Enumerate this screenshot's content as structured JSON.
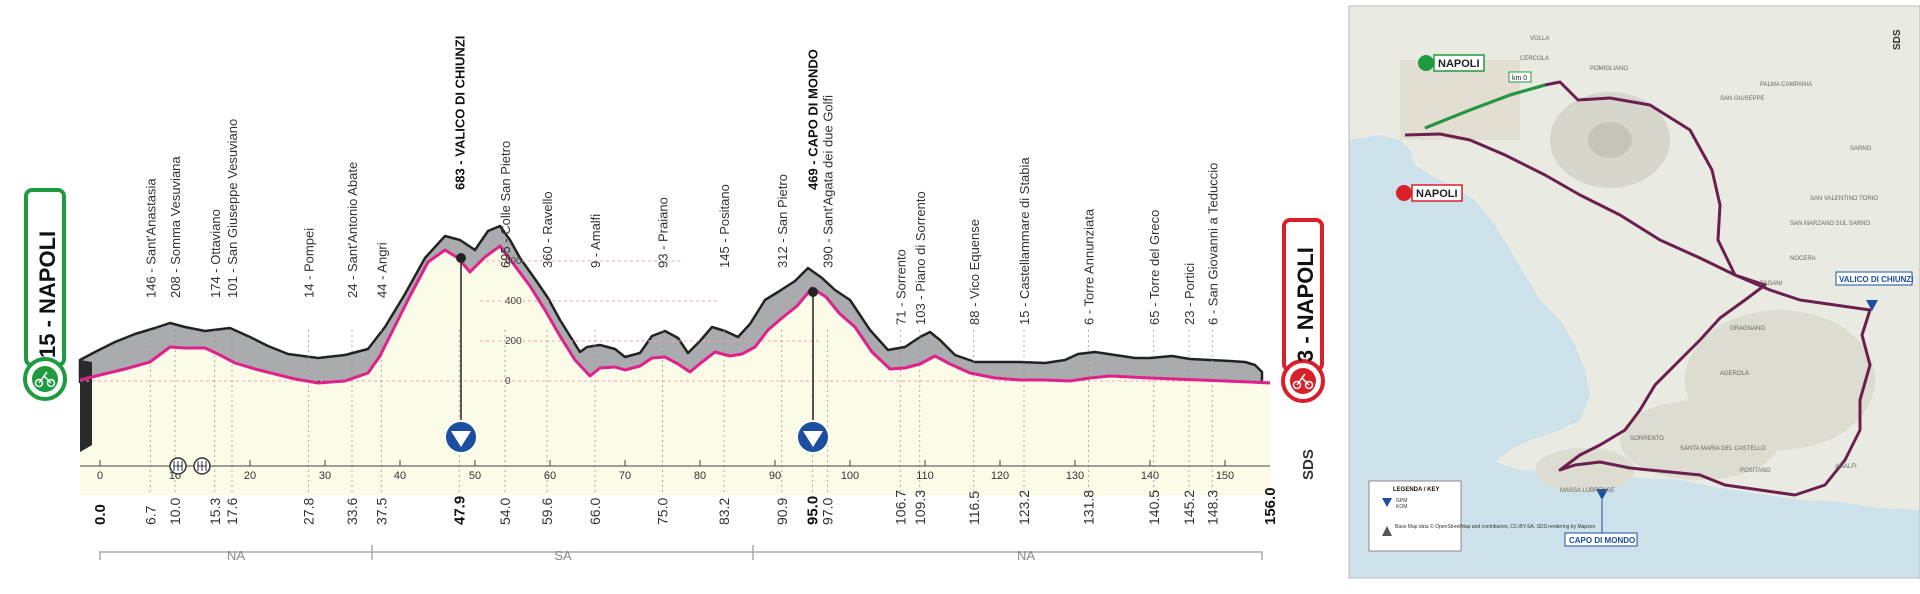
{
  "profile": {
    "start_badge": "15 - NAPOLI",
    "finish_badge": "3 - NAPOLI",
    "brand": "SDS",
    "colors": {
      "start": "#1e9a3f",
      "finish": "#d8202a",
      "line": "#e0218a",
      "fill": "#fbfbe8",
      "terrain": "#a9abaf"
    },
    "elevation_labels": [
      "600",
      "400",
      "200",
      "0"
    ],
    "km_ticks": [
      "0",
      "10",
      "20",
      "30",
      "40",
      "50",
      "60",
      "70",
      "80",
      "90",
      "100",
      "110",
      "120",
      "130",
      "140",
      "150"
    ],
    "waypoints": [
      {
        "km": "0.0",
        "label": "",
        "bold": false
      },
      {
        "km": "6.7",
        "label": "146 - Sant'Anastasia",
        "bold": false
      },
      {
        "km": "10.0",
        "label": "208 - Somma Vesuviana",
        "bold": false
      },
      {
        "km": "15.3",
        "label": "174 - Ottaviano",
        "bold": false
      },
      {
        "km": "17.6",
        "label": "101 - San Giuseppe Vesuviano",
        "bold": false
      },
      {
        "km": "27.8",
        "label": "14 - Pompei",
        "bold": false
      },
      {
        "km": "33.6",
        "label": "24 - Sant'Antonio Abate",
        "bold": false
      },
      {
        "km": "37.5",
        "label": "44 - Angri",
        "bold": false
      },
      {
        "km": "47.9",
        "label": "683 - VALICO DI CHIUNZI",
        "bold": true
      },
      {
        "km": "54.0",
        "label": "695 - Colle San Pietro",
        "bold": false
      },
      {
        "km": "59.6",
        "label": "360 - Ravello",
        "bold": false
      },
      {
        "km": "66.0",
        "label": "9 - Amalfi",
        "bold": false
      },
      {
        "km": "75.0",
        "label": "93 - Praiano",
        "bold": false
      },
      {
        "km": "83.2",
        "label": "145 - Positano",
        "bold": false
      },
      {
        "km": "90.9",
        "label": "312 - San Pietro",
        "bold": false
      },
      {
        "km": "95.0",
        "label": "469 - CAPO DI MONDO",
        "bold": true
      },
      {
        "km": "97.0",
        "label": "390 - Sant'Agata dei due Golfi",
        "bold": false
      },
      {
        "km": "106.7",
        "label": "71 - Sorrento",
        "bold": false
      },
      {
        "km": "109.3",
        "label": "103 - Piano di Sorrento",
        "bold": false
      },
      {
        "km": "116.5",
        "label": "88 - Vico Equense",
        "bold": false
      },
      {
        "km": "123.2",
        "label": "15 - Castellammare di Stabia",
        "bold": false
      },
      {
        "km": "131.8",
        "label": "6 - Torre Annunziata",
        "bold": false
      },
      {
        "km": "140.5",
        "label": "65 - Torre del Greco",
        "bold": false
      },
      {
        "km": "145.2",
        "label": "23 - Portici",
        "bold": false
      },
      {
        "km": "148.3",
        "label": "6 - San Giovanni a Teduccio",
        "bold": false
      },
      {
        "km": "156.0",
        "label": "",
        "bold": false
      }
    ],
    "provinces": [
      "NA",
      "SA",
      "NA"
    ]
  },
  "map": {
    "start_town": "NAPOLI",
    "finish_town": "NAPOLI",
    "km0_label": "km 0",
    "climb1": "VALICO DI CHIUNZI",
    "climb2": "CAPO DI MONDO",
    "compass": "SDS",
    "legend_title": "LEGENDA / KEY",
    "legend_gpm": "GPM",
    "legend_kom": "KOM",
    "credits": "Base Map data © OpenStreetMap and contributors, CC-BY-SA. SDS rendering by Mapzen",
    "places": [
      "VOLLA",
      "CERCOLA",
      "POMIGLIANO",
      "PALMA CAMPANIA",
      "SAN GIUSEPPE",
      "SARNO",
      "SAN VALENTINO TORIO",
      "SAN MARZANO SUL SARNO",
      "NOCERA",
      "PAGANI",
      "GRAGNANO",
      "AGEROLA",
      "MASSA LUBRENSE",
      "SANTA MARIA DEL CASTELLO",
      "SORRENTO",
      "POSITANO",
      "AMALFI"
    ]
  }
}
